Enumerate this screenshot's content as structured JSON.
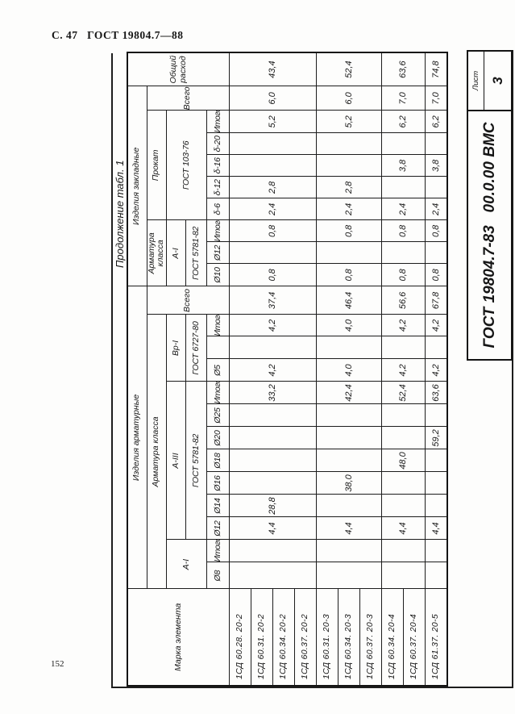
{
  "page": {
    "header": "С. 47   ГОСТ 19804.7—88",
    "page_number": "152",
    "table_caption": "Продолжение табл. 1"
  },
  "title_block": {
    "doc_number": "ГОСТ 19804.7-83   00.0.00 ВМС",
    "sheet_label": "Лист",
    "sheet_number": "3"
  },
  "table": {
    "corner_header": "Марка элемента",
    "labels": {
      "armature_products": "Изделия арматурные",
      "embedded_products": "Изделия закладные",
      "total_overall": "Общий расход",
      "armature_class": "Арматура класса",
      "prokat": "Прокат",
      "vsego": "Всего",
      "a1": "А-I",
      "a3": "А-III",
      "vr1": "Вр-I",
      "gost5781": "ГОСТ 5781-82",
      "gost6727": "ГОСТ 6727-80",
      "gost103": "ГОСТ 103-76"
    },
    "col_headers": [
      "Ø8",
      "Итого",
      "Ø12",
      "Ø14",
      "Ø16",
      "Ø18",
      "Ø20",
      "Ø25",
      "Итого",
      "Ø5",
      "",
      "Итого",
      "Ø10",
      "Ø12",
      "Итого",
      "δ-6",
      "δ-12",
      "δ-16",
      "δ-20",
      "Итого"
    ],
    "row_labels": [
      "1СД 60.28. 20-2",
      "1СД 60.31. 20-2",
      "1СД 60.34. 20-2",
      "1СД 60.37. 20-2",
      "1СД 60.31. 20-3",
      "1СД 60.34. 20-3",
      "1СД 60.37. 20-3",
      "1СД 60.34. 20-4",
      "1СД 60.37. 20-4",
      "1СД 61.37. 20-5"
    ],
    "row_groups": [
      {
        "span": 4,
        "values": [
          "",
          "",
          "4,4",
          "28,8",
          "",
          "",
          "",
          "",
          "33,2",
          "4,2",
          "",
          "4,2",
          "37,4",
          "0,8",
          "",
          "0,8",
          "2,4",
          "2,8",
          "",
          "",
          "5,2",
          "6,0",
          "43,4"
        ]
      },
      {
        "span": 3,
        "values": [
          "",
          "",
          "4,4",
          "",
          "38,0",
          "",
          "",
          "",
          "42,4",
          "4,0",
          "",
          "4,0",
          "46,4",
          "0,8",
          "",
          "0,8",
          "2,4",
          "2,8",
          "",
          "",
          "5,2",
          "6,0",
          "52,4"
        ]
      },
      {
        "span": 2,
        "values": [
          "",
          "",
          "4,4",
          "",
          "",
          "48,0",
          "",
          "",
          "52,4",
          "4,2",
          "",
          "4,2",
          "56,6",
          "0,8",
          "",
          "0,8",
          "2,4",
          "",
          "3,8",
          "",
          "6,2",
          "7,0",
          "63,6"
        ]
      },
      {
        "span": 1,
        "values": [
          "",
          "",
          "4,4",
          "",
          "",
          "",
          "59,2",
          "",
          "63,6",
          "4,2",
          "",
          "4,2",
          "67,8",
          "0,8",
          "",
          "0,8",
          "2,4",
          "",
          "3,8",
          "",
          "6,2",
          "7,0",
          "74,8"
        ]
      }
    ]
  }
}
